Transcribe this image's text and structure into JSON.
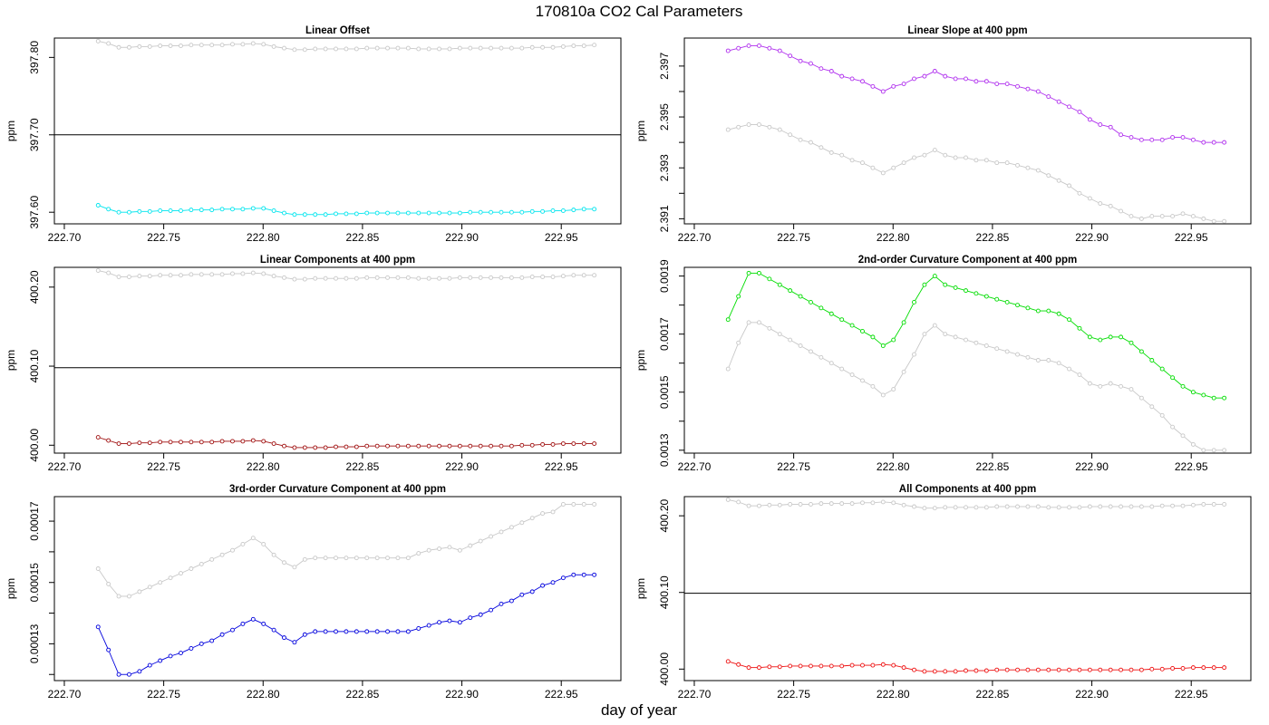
{
  "title": "170810a   CO2 Cal Parameters",
  "xlabel": "day of year",
  "colors": {
    "reference": "#c8c8c8",
    "linear_offset": "#00e5ee",
    "linear_slope": "#b030ee",
    "linear_components": "#a01010",
    "second_order": "#00dd00",
    "third_order": "#0000dd",
    "all_components": "#ee1111"
  },
  "chart_data": [
    {
      "type": "line",
      "title": "Linear Offset",
      "ylabel": "ppm",
      "xlim": [
        222.695,
        222.98
      ],
      "ylim": [
        397.585,
        397.825
      ],
      "xticks": [
        "222.70",
        "222.75",
        "222.80",
        "222.85",
        "222.90",
        "222.95"
      ],
      "yticks": [
        "397.60",
        "397.70",
        "397.80"
      ],
      "hline": 397.7,
      "x_start": 222.717,
      "x_step": 0.0052,
      "series": [
        {
          "color_key": "reference",
          "values": [
            397.821,
            397.818,
            397.813,
            397.813,
            397.814,
            397.814,
            397.815,
            397.815,
            397.815,
            397.816,
            397.816,
            397.816,
            397.816,
            397.817,
            397.817,
            397.818,
            397.817,
            397.814,
            397.812,
            397.81,
            397.81,
            397.811,
            397.811,
            397.811,
            397.811,
            397.811,
            397.812,
            397.812,
            397.812,
            397.812,
            397.812,
            397.811,
            397.811,
            397.811,
            397.811,
            397.812,
            397.812,
            397.812,
            397.812,
            397.812,
            397.812,
            397.812,
            397.813,
            397.813,
            397.813,
            397.814,
            397.815,
            397.815,
            397.816
          ]
        },
        {
          "color_key": "linear_offset",
          "values": [
            397.609,
            397.604,
            397.6,
            397.6,
            397.601,
            397.601,
            397.602,
            397.602,
            397.602,
            397.603,
            397.603,
            397.603,
            397.604,
            397.604,
            397.604,
            397.605,
            397.605,
            397.602,
            397.599,
            397.597,
            397.597,
            397.597,
            397.597,
            397.598,
            397.598,
            397.598,
            397.599,
            397.599,
            397.599,
            397.599,
            397.599,
            397.599,
            397.599,
            397.599,
            397.599,
            397.599,
            397.6,
            397.6,
            397.6,
            397.6,
            397.6,
            397.6,
            397.601,
            397.601,
            397.602,
            397.602,
            397.603,
            397.604,
            397.604
          ]
        }
      ]
    },
    {
      "type": "line",
      "title": "Linear Slope at 400 ppm",
      "ylabel": "ppm",
      "xlim": [
        222.695,
        222.98
      ],
      "ylim": [
        2.3908,
        2.3981
      ],
      "xticks": [
        "222.70",
        "222.75",
        "222.80",
        "222.85",
        "222.90",
        "222.95"
      ],
      "yticks": [
        "2.391",
        "2.393",
        "2.395",
        "2.397"
      ],
      "minor_yticks": [
        2.392,
        2.394,
        2.396
      ],
      "x_start": 222.717,
      "x_step": 0.0052,
      "series": [
        {
          "color_key": "reference",
          "values": [
            2.3945,
            2.3946,
            2.3947,
            2.3947,
            2.3946,
            2.3945,
            2.3943,
            2.3941,
            2.394,
            2.3938,
            2.3936,
            2.3935,
            2.3933,
            2.3932,
            2.393,
            2.3928,
            2.393,
            2.3932,
            2.3934,
            2.3935,
            2.3937,
            2.3935,
            2.3934,
            2.3934,
            2.3933,
            2.3933,
            2.3932,
            2.3932,
            2.3931,
            2.393,
            2.3929,
            2.3927,
            2.3925,
            2.3923,
            2.392,
            2.3918,
            2.3916,
            2.3915,
            2.3913,
            2.3911,
            2.391,
            2.3911,
            2.3911,
            2.3911,
            2.3912,
            2.3911,
            2.391,
            2.3909,
            2.3909
          ]
        },
        {
          "color_key": "linear_slope",
          "values": [
            2.3976,
            2.3977,
            2.3978,
            2.3978,
            2.3977,
            2.3976,
            2.3974,
            2.3972,
            2.3971,
            2.3969,
            2.3968,
            2.3966,
            2.3965,
            2.3964,
            2.3962,
            2.396,
            2.3962,
            2.3963,
            2.3965,
            2.3966,
            2.3968,
            2.3966,
            2.3965,
            2.3965,
            2.3964,
            2.3964,
            2.3963,
            2.3963,
            2.3962,
            2.3961,
            2.396,
            2.3958,
            2.3956,
            2.3954,
            2.3952,
            2.3949,
            2.3947,
            2.3946,
            2.3943,
            2.3942,
            2.3941,
            2.3941,
            2.3941,
            2.3942,
            2.3942,
            2.3941,
            2.394,
            2.394,
            2.394
          ]
        }
      ]
    },
    {
      "type": "line",
      "title": "Linear Components at 400 ppm",
      "ylabel": "ppm",
      "xlim": [
        222.695,
        222.98
      ],
      "ylim": [
        399.99,
        400.225
      ],
      "xticks": [
        "222.70",
        "222.75",
        "222.80",
        "222.85",
        "222.90",
        "222.95"
      ],
      "yticks": [
        "400.00",
        "400.10",
        "400.20"
      ],
      "hline": 400.098,
      "x_start": 222.717,
      "x_step": 0.0052,
      "series": [
        {
          "color_key": "reference",
          "values": [
            400.221,
            400.218,
            400.213,
            400.213,
            400.214,
            400.214,
            400.215,
            400.215,
            400.215,
            400.216,
            400.216,
            400.216,
            400.216,
            400.217,
            400.217,
            400.218,
            400.217,
            400.214,
            400.212,
            400.21,
            400.21,
            400.211,
            400.211,
            400.211,
            400.211,
            400.211,
            400.212,
            400.212,
            400.212,
            400.212,
            400.212,
            400.211,
            400.211,
            400.211,
            400.211,
            400.212,
            400.212,
            400.212,
            400.212,
            400.212,
            400.212,
            400.212,
            400.213,
            400.213,
            400.213,
            400.214,
            400.215,
            400.215,
            400.215
          ]
        },
        {
          "color_key": "linear_components",
          "values": [
            400.01,
            400.006,
            400.002,
            400.002,
            400.003,
            400.003,
            400.004,
            400.004,
            400.004,
            400.004,
            400.004,
            400.004,
            400.005,
            400.005,
            400.005,
            400.006,
            400.005,
            400.002,
            399.999,
            399.997,
            399.997,
            399.997,
            399.997,
            399.998,
            399.998,
            399.998,
            399.999,
            399.999,
            399.999,
            399.999,
            399.999,
            399.999,
            399.999,
            399.999,
            399.999,
            399.999,
            399.999,
            399.999,
            399.999,
            399.999,
            399.999,
            400.0,
            400.0,
            400.001,
            400.001,
            400.002,
            400.002,
            400.002,
            400.002
          ]
        }
      ]
    },
    {
      "type": "line",
      "title": "2nd-order Curvature Component at 400 ppm",
      "ylabel": "ppm",
      "xlim": [
        222.695,
        222.98
      ],
      "ylim": [
        0.00129,
        0.00193
      ],
      "xticks": [
        "222.70",
        "222.75",
        "222.80",
        "222.85",
        "222.90",
        "222.95"
      ],
      "yticks": [
        "0.0013",
        "0.0015",
        "0.0017",
        "0.0019"
      ],
      "minor_yticks": [
        0.0014,
        0.0016,
        0.0018
      ],
      "x_start": 222.717,
      "x_step": 0.0052,
      "series": [
        {
          "color_key": "reference",
          "values": [
            0.00158,
            0.00167,
            0.00174,
            0.00174,
            0.00172,
            0.0017,
            0.00168,
            0.00166,
            0.00164,
            0.00162,
            0.0016,
            0.00158,
            0.00156,
            0.00154,
            0.00152,
            0.00149,
            0.00151,
            0.00157,
            0.00163,
            0.0017,
            0.00173,
            0.0017,
            0.00169,
            0.00168,
            0.00167,
            0.00166,
            0.00165,
            0.00164,
            0.00163,
            0.00162,
            0.00161,
            0.00161,
            0.0016,
            0.00158,
            0.00156,
            0.00153,
            0.00152,
            0.00153,
            0.00152,
            0.00151,
            0.00148,
            0.00145,
            0.00142,
            0.00138,
            0.00135,
            0.00132,
            0.0013,
            0.0013,
            0.0013
          ]
        },
        {
          "color_key": "second_order",
          "values": [
            0.00175,
            0.00183,
            0.00191,
            0.00191,
            0.00189,
            0.00187,
            0.00185,
            0.00183,
            0.00181,
            0.00179,
            0.00177,
            0.00175,
            0.00173,
            0.00171,
            0.00169,
            0.00166,
            0.00168,
            0.00174,
            0.00181,
            0.00187,
            0.0019,
            0.00187,
            0.00186,
            0.00185,
            0.00184,
            0.00183,
            0.00182,
            0.00181,
            0.0018,
            0.00179,
            0.00178,
            0.00178,
            0.00177,
            0.00175,
            0.00172,
            0.00169,
            0.00168,
            0.00169,
            0.00169,
            0.00167,
            0.00164,
            0.00161,
            0.00158,
            0.00155,
            0.00152,
            0.0015,
            0.00149,
            0.00148,
            0.00148
          ]
        }
      ]
    },
    {
      "type": "line",
      "title": "3rd-order Curvature Component at 400 ppm",
      "ylabel": "ppm",
      "xlim": [
        222.695,
        222.98
      ],
      "ylim": [
        0.000118,
        0.000178
      ],
      "xticks": [
        "222.70",
        "222.75",
        "222.80",
        "222.85",
        "222.90",
        "222.95"
      ],
      "yticks": [
        "0.00013",
        "0.00015",
        "0.00017"
      ],
      "minor_yticks": [
        0.00012,
        0.00014,
        0.00016
      ],
      "x_start": 222.717,
      "x_step": 0.0052,
      "series": [
        {
          "color_key": "reference",
          "values": [
            0.0001545,
            0.0001495,
            0.0001455,
            0.0001455,
            0.000147,
            0.0001485,
            0.00015,
            0.0001515,
            0.000153,
            0.0001545,
            0.000156,
            0.0001575,
            0.000159,
            0.0001605,
            0.0001625,
            0.0001645,
            0.0001625,
            0.000159,
            0.0001565,
            0.000155,
            0.0001575,
            0.000158,
            0.000158,
            0.000158,
            0.000158,
            0.000158,
            0.000158,
            0.000158,
            0.000158,
            0.000158,
            0.000158,
            0.0001595,
            0.0001605,
            0.000161,
            0.0001615,
            0.0001605,
            0.000162,
            0.0001635,
            0.000165,
            0.0001665,
            0.000168,
            0.0001695,
            0.000171,
            0.0001725,
            0.000173,
            0.0001755,
            0.0001755,
            0.0001755,
            0.0001755
          ]
        },
        {
          "color_key": "third_order",
          "values": [
            0.0001355,
            0.000128,
            0.00012,
            0.00012,
            0.000121,
            0.000123,
            0.0001245,
            0.000126,
            0.000127,
            0.0001285,
            0.00013,
            0.000131,
            0.000133,
            0.0001345,
            0.0001365,
            0.000138,
            0.0001365,
            0.0001345,
            0.000132,
            0.0001305,
            0.000133,
            0.000134,
            0.000134,
            0.000134,
            0.000134,
            0.000134,
            0.000134,
            0.000134,
            0.000134,
            0.000134,
            0.000134,
            0.000135,
            0.000136,
            0.000137,
            0.0001375,
            0.000137,
            0.0001385,
            0.0001395,
            0.000141,
            0.000143,
            0.000144,
            0.000146,
            0.000147,
            0.000149,
            0.00015,
            0.0001515,
            0.0001525,
            0.0001525,
            0.0001525
          ]
        }
      ]
    },
    {
      "type": "line",
      "title": "All Components at 400 ppm",
      "ylabel": "ppm",
      "xlim": [
        222.695,
        222.98
      ],
      "ylim": [
        399.985,
        400.225
      ],
      "xticks": [
        "222.70",
        "222.75",
        "222.80",
        "222.85",
        "222.90",
        "222.95"
      ],
      "yticks": [
        "400.00",
        "400.10",
        "400.20"
      ],
      "hline": 400.099,
      "x_start": 222.717,
      "x_step": 0.0052,
      "series": [
        {
          "color_key": "reference",
          "values": [
            400.221,
            400.218,
            400.213,
            400.213,
            400.214,
            400.214,
            400.215,
            400.215,
            400.215,
            400.216,
            400.216,
            400.216,
            400.216,
            400.217,
            400.217,
            400.218,
            400.217,
            400.214,
            400.212,
            400.21,
            400.21,
            400.211,
            400.211,
            400.211,
            400.211,
            400.211,
            400.212,
            400.212,
            400.212,
            400.212,
            400.212,
            400.211,
            400.211,
            400.211,
            400.211,
            400.212,
            400.212,
            400.212,
            400.212,
            400.212,
            400.212,
            400.212,
            400.213,
            400.213,
            400.213,
            400.214,
            400.215,
            400.215,
            400.215
          ]
        },
        {
          "color_key": "all_components",
          "values": [
            400.01,
            400.006,
            400.002,
            400.002,
            400.003,
            400.003,
            400.004,
            400.004,
            400.004,
            400.004,
            400.004,
            400.004,
            400.005,
            400.005,
            400.005,
            400.006,
            400.005,
            400.002,
            399.999,
            399.997,
            399.997,
            399.997,
            399.997,
            399.998,
            399.998,
            399.998,
            399.999,
            399.999,
            399.999,
            399.999,
            399.999,
            399.999,
            399.999,
            399.999,
            399.999,
            399.999,
            399.999,
            399.999,
            399.999,
            399.999,
            399.999,
            400.0,
            400.0,
            400.001,
            400.001,
            400.002,
            400.002,
            400.002,
            400.002
          ]
        }
      ]
    }
  ]
}
